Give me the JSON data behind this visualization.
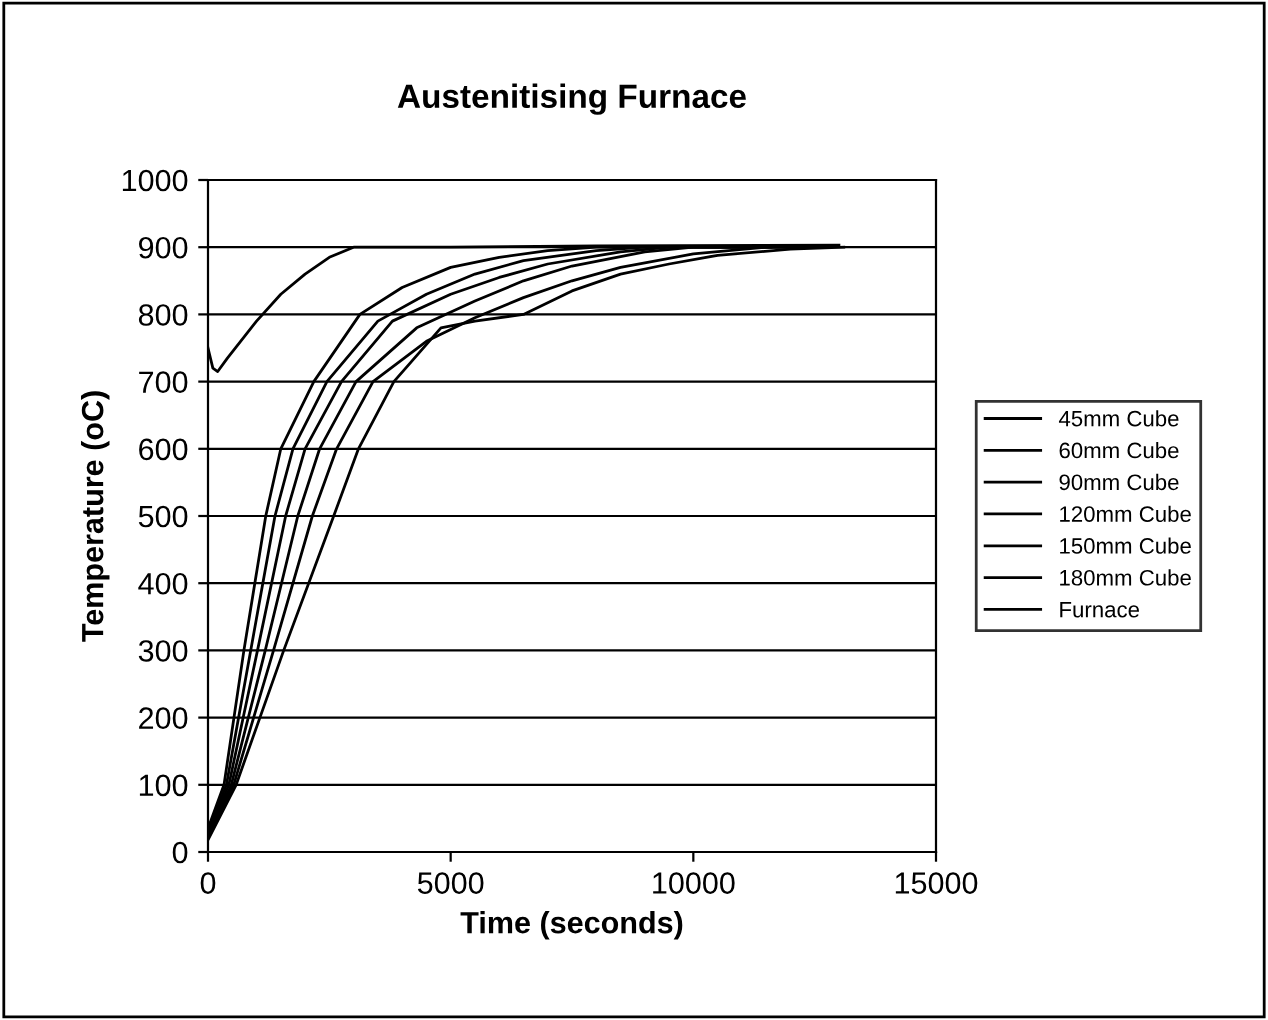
{
  "chart_data": {
    "type": "line",
    "title": "Austenitising Furnace",
    "xlabel": "Time (seconds)",
    "ylabel": "Temperature (oC)",
    "xlim": [
      0,
      15000
    ],
    "xticks": [
      0,
      5000,
      10000,
      15000
    ],
    "ylim": [
      0,
      1000
    ],
    "yticks": [
      0,
      100,
      200,
      300,
      400,
      500,
      600,
      700,
      800,
      900,
      1000
    ],
    "grid": "y",
    "legend": "right",
    "marker": "none",
    "line_style": "solid",
    "series": [
      {
        "name": "45mm Cube",
        "color": "#000000",
        "x": [
          0,
          330,
          740,
          1190,
          1500,
          2180,
          3130,
          4000,
          5000,
          6000,
          7000,
          8000,
          11200
        ],
        "values": [
          35,
          100,
          300,
          500,
          600,
          700,
          800,
          840,
          870,
          885,
          895,
          900,
          900
        ]
      },
      {
        "name": "60mm Cube",
        "color": "#000000",
        "x": [
          0,
          380,
          880,
          1380,
          1750,
          2450,
          3500,
          4500,
          5500,
          6500,
          8000,
          9000,
          11600
        ],
        "values": [
          30,
          100,
          300,
          500,
          600,
          700,
          790,
          830,
          860,
          880,
          895,
          900,
          900
        ]
      },
      {
        "name": "90mm Cube",
        "color": "#000000",
        "x": [
          0,
          430,
          1020,
          1600,
          2000,
          2750,
          3800,
          5000,
          6000,
          7000,
          8500,
          9500,
          12000
        ],
        "values": [
          27,
          100,
          300,
          500,
          600,
          700,
          790,
          830,
          855,
          875,
          893,
          900,
          900
        ]
      },
      {
        "name": "120mm Cube",
        "color": "#000000",
        "x": [
          0,
          480,
          1180,
          1850,
          2300,
          3050,
          4300,
          5500,
          6500,
          7500,
          9000,
          10000,
          12400
        ],
        "values": [
          24,
          100,
          300,
          500,
          600,
          700,
          780,
          820,
          850,
          872,
          893,
          900,
          900
        ]
      },
      {
        "name": "150mm Cube",
        "color": "#000000",
        "x": [
          0,
          530,
          1350,
          2150,
          2650,
          3400,
          4500,
          5500,
          6500,
          7500,
          8500,
          10000,
          11500,
          12700
        ],
        "values": [
          22,
          100,
          300,
          500,
          600,
          700,
          760,
          795,
          825,
          850,
          870,
          890,
          900,
          900
        ]
      },
      {
        "name": "180mm Cube",
        "color": "#000000",
        "x": [
          0,
          580,
          1560,
          2590,
          3100,
          3830,
          4800,
          5500,
          6500,
          7500,
          8500,
          9500,
          10500,
          12000,
          13100
        ],
        "values": [
          18,
          100,
          300,
          500,
          600,
          700,
          780,
          790,
          800,
          835,
          860,
          875,
          888,
          897,
          900
        ]
      },
      {
        "name": "Furnace",
        "color": "#000000",
        "x": [
          0,
          100,
          200,
          400,
          1000,
          1500,
          2000,
          2500,
          3000,
          5000,
          8000,
          13000
        ],
        "values": [
          750,
          720,
          715,
          735,
          790,
          830,
          860,
          885,
          900,
          900,
          902,
          903
        ]
      }
    ]
  }
}
